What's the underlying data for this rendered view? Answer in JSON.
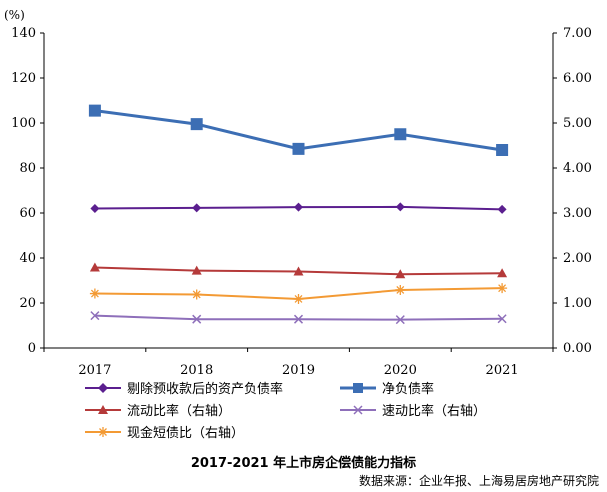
{
  "chart_data": {
    "type": "line",
    "categories": [
      "2017",
      "2018",
      "2019",
      "2020",
      "2021"
    ],
    "left_axis": {
      "unit": "(%)",
      "ticks": [
        "0",
        "20",
        "40",
        "60",
        "80",
        "100",
        "120",
        "140"
      ],
      "ylim": [
        0,
        140
      ]
    },
    "right_axis": {
      "ticks": [
        "0.00",
        "1.00",
        "2.00",
        "3.00",
        "4.00",
        "5.00",
        "6.00",
        "7.00"
      ],
      "ylim": [
        0,
        7
      ]
    },
    "series": [
      {
        "name": "剔除预收款后的资产负债率",
        "axis": "left",
        "color": "#5b1f8f",
        "marker": "diamond",
        "values": [
          62.0,
          62.3,
          62.6,
          62.7,
          61.6
        ]
      },
      {
        "name": "净负债率",
        "axis": "left",
        "color": "#3c6eb4",
        "marker": "square",
        "values": [
          105.5,
          99.5,
          88.5,
          95.0,
          88.0
        ]
      },
      {
        "name": "流动比率（右轴）",
        "axis": "right",
        "color": "#b53a3a",
        "marker": "triangle",
        "values": [
          1.79,
          1.72,
          1.7,
          1.64,
          1.66
        ]
      },
      {
        "name": "速动比率（右轴）",
        "axis": "right",
        "color": "#8e6fba",
        "marker": "x",
        "values": [
          0.72,
          0.64,
          0.64,
          0.63,
          0.65
        ]
      },
      {
        "name": "现金短债比（右轴）",
        "axis": "right",
        "color": "#f39a34",
        "marker": "star",
        "values": [
          1.21,
          1.19,
          1.09,
          1.29,
          1.33
        ]
      }
    ],
    "grid": false,
    "legend_position": "bottom"
  },
  "caption": "2017-2021 年上市房企偿债能力指标",
  "source": "数据来源：企业年报、上海易居房地产研究院"
}
